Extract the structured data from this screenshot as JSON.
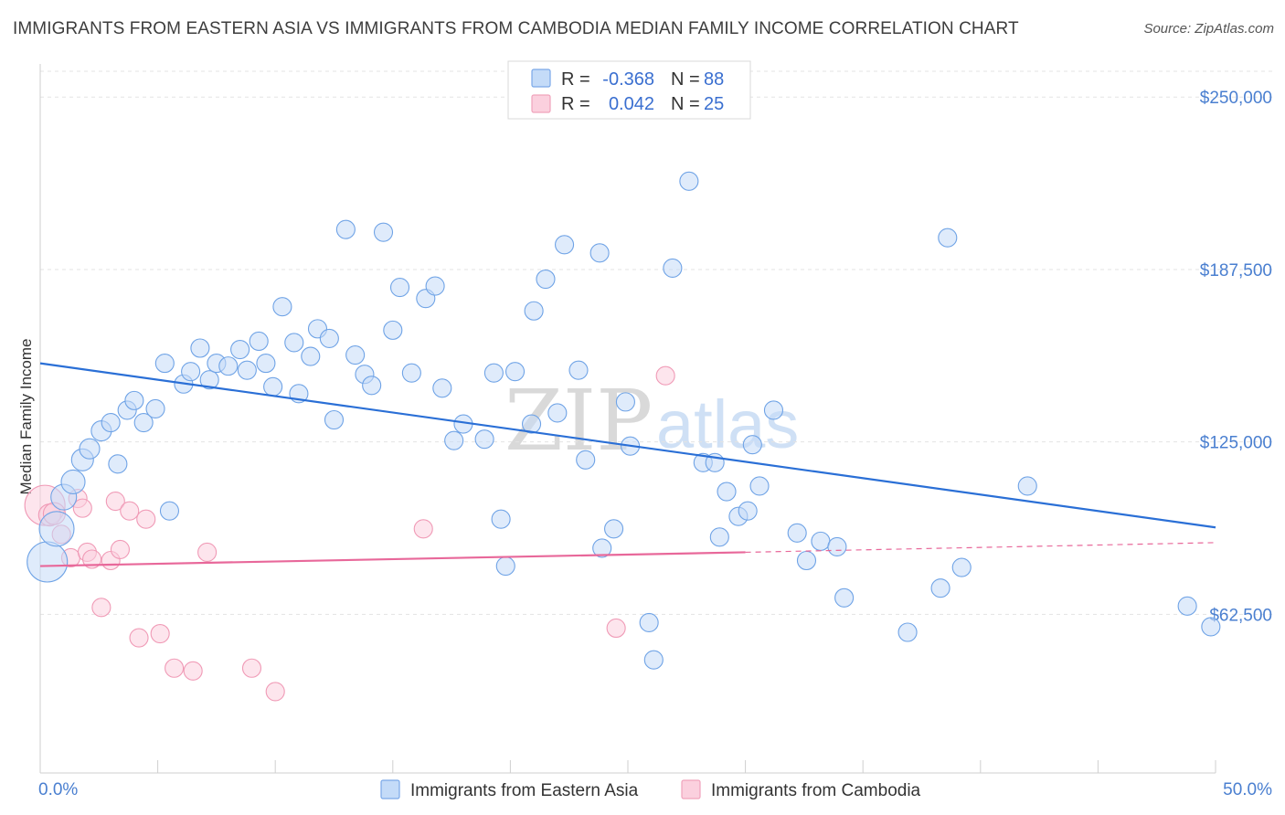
{
  "header": {
    "title": "IMMIGRANTS FROM EASTERN ASIA VS IMMIGRANTS FROM CAMBODIA MEDIAN FAMILY INCOME CORRELATION CHART",
    "source": "Source: ZipAtlas.com"
  },
  "watermark": {
    "zip": "ZIP",
    "atlas": "atlas"
  },
  "colors": {
    "blue": "#6fa3e6",
    "blue_line": "#2a6fd6",
    "pink": "#f29bb6",
    "pink_line": "#e8689a",
    "axis_label": "#4a7fd0"
  },
  "chart_data": {
    "type": "scatter",
    "title": "IMMIGRANTS FROM EASTERN ASIA VS IMMIGRANTS FROM CAMBODIA MEDIAN FAMILY INCOME CORRELATION CHART",
    "xlabel": "",
    "ylabel": "Median Family Income",
    "xlim": [
      0,
      50
    ],
    "ylim": [
      5000,
      262000
    ],
    "x_tick_labels": [
      "0.0%",
      "50.0%"
    ],
    "y_ticks": [
      62500,
      125000,
      187500,
      250000
    ],
    "y_tick_labels": [
      "$62,500",
      "$125,000",
      "$187,500",
      "$250,000"
    ],
    "legend": [
      {
        "r_label": "R =",
        "r_value": "-0.368",
        "n_label": "N =",
        "n_value": "88"
      },
      {
        "r_label": "R =",
        "r_value": "0.042",
        "n_label": "N =",
        "n_value": "25"
      }
    ],
    "series": [
      {
        "name": "Immigrants from Eastern Asia",
        "color": "#6fa3e6",
        "trend": {
          "x": [
            0,
            50
          ],
          "y": [
            153500,
            94000
          ]
        },
        "points": [
          [
            0.3,
            81500
          ],
          [
            0.7,
            93500
          ],
          [
            1.0,
            105000
          ],
          [
            1.4,
            110500
          ],
          [
            1.8,
            118500
          ],
          [
            2.1,
            122500
          ],
          [
            2.6,
            129000
          ],
          [
            3.0,
            132000
          ],
          [
            3.3,
            117000
          ],
          [
            3.7,
            136500
          ],
          [
            4.0,
            140000
          ],
          [
            4.4,
            132000
          ],
          [
            4.9,
            137000
          ],
          [
            5.3,
            153500
          ],
          [
            5.5,
            100000
          ],
          [
            6.1,
            146000
          ],
          [
            6.4,
            150500
          ],
          [
            6.8,
            159000
          ],
          [
            7.2,
            147500
          ],
          [
            7.5,
            153500
          ],
          [
            8.0,
            152500
          ],
          [
            8.5,
            158500
          ],
          [
            8.8,
            151000
          ],
          [
            9.3,
            161500
          ],
          [
            9.6,
            153500
          ],
          [
            9.9,
            145000
          ],
          [
            10.3,
            174000
          ],
          [
            10.8,
            161000
          ],
          [
            11.0,
            142500
          ],
          [
            11.5,
            156000
          ],
          [
            11.8,
            166000
          ],
          [
            12.3,
            162500
          ],
          [
            12.5,
            133000
          ],
          [
            13.0,
            202000
          ],
          [
            13.4,
            156500
          ],
          [
            13.8,
            149500
          ],
          [
            14.1,
            145500
          ],
          [
            14.6,
            201000
          ],
          [
            15.0,
            165500
          ],
          [
            15.3,
            181000
          ],
          [
            15.8,
            150000
          ],
          [
            16.4,
            177000
          ],
          [
            16.8,
            181500
          ],
          [
            17.1,
            144500
          ],
          [
            17.6,
            125500
          ],
          [
            18.0,
            131500
          ],
          [
            18.9,
            126000
          ],
          [
            19.3,
            150000
          ],
          [
            19.6,
            97000
          ],
          [
            19.8,
            80000
          ],
          [
            20.2,
            150500
          ],
          [
            20.9,
            131500
          ],
          [
            21.0,
            172500
          ],
          [
            21.5,
            184000
          ],
          [
            22.0,
            135500
          ],
          [
            22.3,
            196500
          ],
          [
            22.9,
            151000
          ],
          [
            23.2,
            118500
          ],
          [
            23.8,
            193500
          ],
          [
            23.9,
            86500
          ],
          [
            24.4,
            93500
          ],
          [
            24.9,
            139500
          ],
          [
            25.1,
            123500
          ],
          [
            25.9,
            59500
          ],
          [
            26.1,
            46000
          ],
          [
            26.9,
            188000
          ],
          [
            27.6,
            219500
          ],
          [
            28.2,
            117500
          ],
          [
            28.7,
            117500
          ],
          [
            28.9,
            90500
          ],
          [
            29.2,
            107000
          ],
          [
            29.7,
            98000
          ],
          [
            30.1,
            100000
          ],
          [
            30.3,
            124000
          ],
          [
            30.6,
            109000
          ],
          [
            31.2,
            136500
          ],
          [
            32.2,
            92000
          ],
          [
            32.6,
            82000
          ],
          [
            33.2,
            89000
          ],
          [
            33.9,
            87000
          ],
          [
            34.2,
            68500
          ],
          [
            36.9,
            56000
          ],
          [
            38.3,
            72000
          ],
          [
            38.6,
            199000
          ],
          [
            39.2,
            79500
          ],
          [
            42.0,
            109000
          ],
          [
            48.8,
            65500
          ],
          [
            49.8,
            58000
          ]
        ],
        "sizes": [
          22,
          19,
          14,
          13,
          12,
          11,
          11,
          10,
          10,
          10,
          10,
          10,
          10,
          10,
          10,
          10,
          10,
          10,
          10,
          10,
          10,
          10,
          10,
          10,
          10,
          10,
          10,
          10,
          10,
          10,
          10,
          10,
          10,
          10,
          10,
          10,
          10,
          10,
          10,
          10,
          10,
          10,
          10,
          10,
          10,
          10,
          10,
          10,
          10,
          10,
          10,
          10,
          10,
          10,
          10,
          10,
          10,
          10,
          10,
          10,
          10,
          10,
          10,
          10,
          10,
          10,
          10,
          10,
          10,
          10,
          10,
          10,
          10,
          10,
          10,
          10,
          10,
          10,
          10,
          10,
          10,
          10,
          10,
          10,
          10,
          10,
          10,
          10
        ]
      },
      {
        "name": "Immigrants from Cambodia",
        "color": "#f29bb6",
        "trend": {
          "x": [
            0,
            30
          ],
          "y": [
            80000,
            85000
          ],
          "dashed_to": [
            50,
            88500
          ]
        },
        "points": [
          [
            0.2,
            102000
          ],
          [
            0.4,
            98500
          ],
          [
            0.6,
            99000
          ],
          [
            0.9,
            91500
          ],
          [
            1.3,
            83000
          ],
          [
            1.6,
            104500
          ],
          [
            1.8,
            101000
          ],
          [
            2.0,
            85000
          ],
          [
            2.2,
            82500
          ],
          [
            2.6,
            65000
          ],
          [
            3.0,
            82000
          ],
          [
            3.2,
            103500
          ],
          [
            3.4,
            86000
          ],
          [
            3.8,
            100000
          ],
          [
            4.2,
            54000
          ],
          [
            4.5,
            97000
          ],
          [
            5.1,
            55500
          ],
          [
            5.7,
            43000
          ],
          [
            6.5,
            42000
          ],
          [
            7.1,
            85000
          ],
          [
            9.0,
            43000
          ],
          [
            10.0,
            34500
          ],
          [
            16.3,
            93500
          ],
          [
            24.5,
            57500
          ],
          [
            26.6,
            149000
          ]
        ],
        "sizes": [
          22,
          12,
          12,
          10,
          10,
          10,
          10,
          10,
          10,
          10,
          10,
          10,
          10,
          10,
          10,
          10,
          10,
          10,
          10,
          10,
          10,
          10,
          10,
          10,
          10
        ]
      }
    ]
  }
}
